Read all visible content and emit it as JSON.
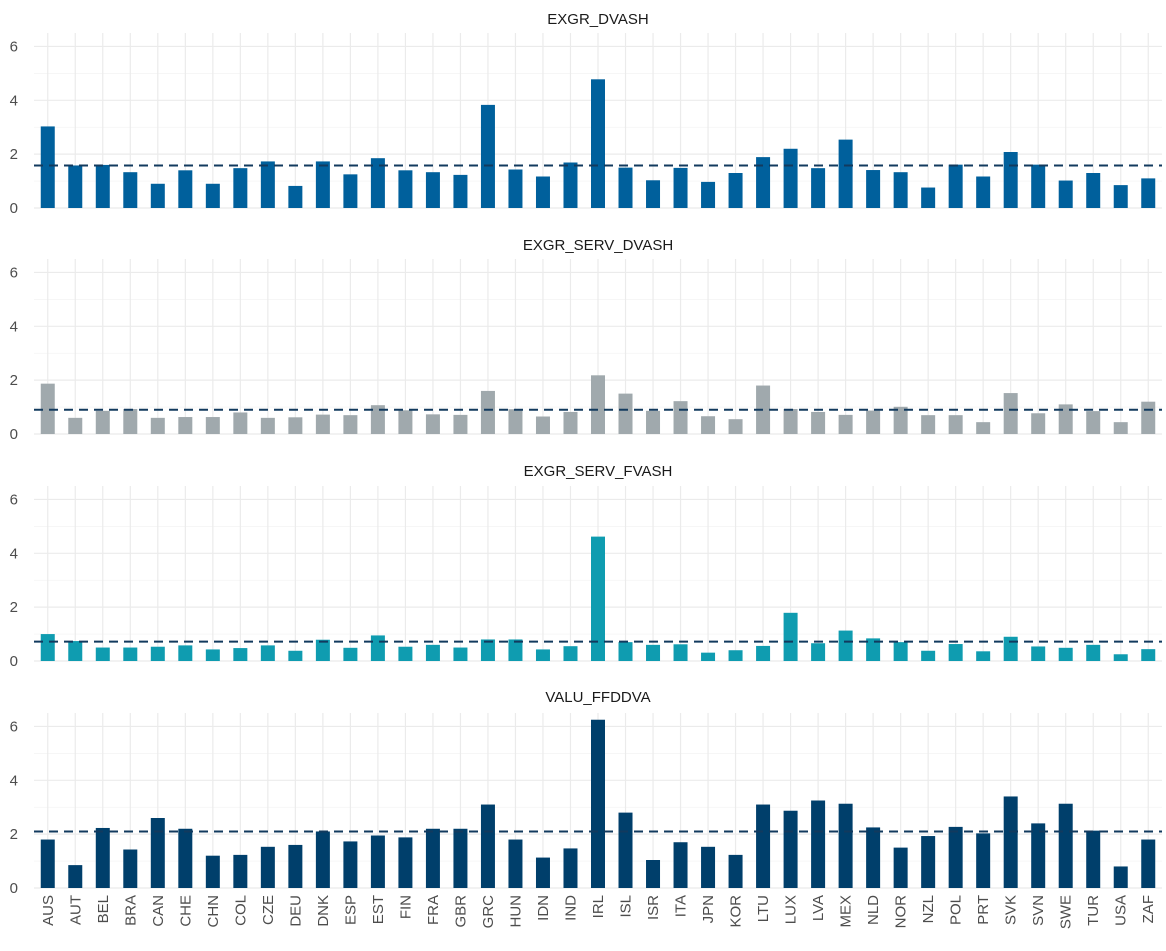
{
  "chart_data": {
    "type": "bar",
    "layout": "faceted-vertical",
    "categories": [
      "AUS",
      "AUT",
      "BEL",
      "BRA",
      "CAN",
      "CHE",
      "CHN",
      "COL",
      "CZE",
      "DEU",
      "DNK",
      "ESP",
      "EST",
      "FIN",
      "FRA",
      "GBR",
      "GRC",
      "HUN",
      "IDN",
      "IND",
      "IRL",
      "ISL",
      "ISR",
      "ITA",
      "JPN",
      "KOR",
      "LTU",
      "LUX",
      "LVA",
      "MEX",
      "NLD",
      "NOR",
      "NZL",
      "POL",
      "PRT",
      "SVK",
      "SVN",
      "SWE",
      "TUR",
      "USA",
      "ZAF"
    ],
    "ylim": [
      0,
      6.5
    ],
    "yticks": [
      0,
      2,
      4,
      6
    ],
    "grid": true,
    "legend": "none",
    "panels": [
      {
        "title": "EXGR_DVASH",
        "color": "#00609c",
        "reference_line": 1.58,
        "values": [
          3.03,
          1.58,
          1.6,
          1.33,
          0.9,
          1.4,
          0.9,
          1.48,
          1.73,
          0.82,
          1.73,
          1.25,
          1.85,
          1.4,
          1.33,
          1.23,
          3.83,
          1.43,
          1.17,
          1.69,
          4.78,
          1.5,
          1.03,
          1.49,
          0.97,
          1.3,
          1.89,
          2.2,
          1.48,
          2.54,
          1.41,
          1.33,
          0.76,
          1.61,
          1.17,
          2.08,
          1.61,
          1.02,
          1.3,
          0.85,
          1.1
        ]
      },
      {
        "title": "EXGR_SERV_DVASH",
        "color": "#a0a9ad",
        "reference_line": 0.9,
        "values": [
          1.87,
          0.6,
          0.86,
          0.93,
          0.6,
          0.63,
          0.63,
          0.8,
          0.6,
          0.62,
          0.72,
          0.7,
          1.07,
          0.88,
          0.73,
          0.71,
          1.6,
          0.92,
          0.65,
          0.82,
          2.18,
          1.5,
          0.86,
          1.22,
          0.66,
          0.55,
          1.8,
          0.93,
          0.82,
          0.71,
          0.87,
          1.01,
          0.7,
          0.7,
          0.44,
          1.52,
          0.77,
          1.1,
          0.85,
          0.44,
          1.2
        ]
      },
      {
        "title": "EXGR_SERV_FVASH",
        "color": "#0f9cb0",
        "reference_line": 0.72,
        "values": [
          1.0,
          0.74,
          0.5,
          0.5,
          0.53,
          0.58,
          0.43,
          0.48,
          0.58,
          0.38,
          0.79,
          0.49,
          0.95,
          0.53,
          0.6,
          0.5,
          0.8,
          0.8,
          0.43,
          0.55,
          4.62,
          0.7,
          0.6,
          0.62,
          0.31,
          0.4,
          0.56,
          1.79,
          0.66,
          1.13,
          0.84,
          0.7,
          0.38,
          0.63,
          0.36,
          0.9,
          0.54,
          0.49,
          0.6,
          0.25,
          0.44
        ]
      },
      {
        "title": "VALU_FFDDVA",
        "color": "#003f6b",
        "reference_line": 2.1,
        "values": [
          1.8,
          0.85,
          2.23,
          1.43,
          2.6,
          2.2,
          1.2,
          1.23,
          1.53,
          1.6,
          2.1,
          1.73,
          1.95,
          1.88,
          2.2,
          2.2,
          3.1,
          1.8,
          1.13,
          1.47,
          6.25,
          2.8,
          1.04,
          1.7,
          1.53,
          1.23,
          3.1,
          2.87,
          3.25,
          3.13,
          2.25,
          1.5,
          1.93,
          2.27,
          2.03,
          3.4,
          2.4,
          3.13,
          2.13,
          0.8,
          1.8
        ]
      }
    ]
  }
}
